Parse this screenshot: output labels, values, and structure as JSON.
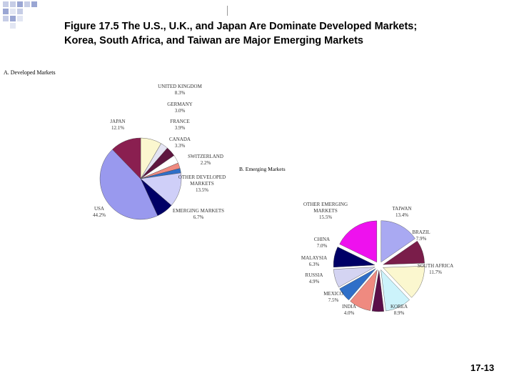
{
  "title_line1": "Figure 17.5 The U.S., U.K., and Japan Are Dominate Developed Markets;",
  "title_line2": "Korea, South Africa, and Taiwan are Major Emerging Markets",
  "slide_number": "17-13",
  "chart_data": [
    {
      "type": "pie",
      "title": "A. Developed Markets",
      "slices": [
        {
          "label": "UNITED KINGDOM",
          "value_text": "8.3%",
          "value": 8.3,
          "color": "#fbf7cf"
        },
        {
          "label": "GERMANY",
          "value_text": "3.0%",
          "value": 3.0,
          "color": "#e4e4f3"
        },
        {
          "label": "FRANCE",
          "value_text": "3.9%",
          "value": 3.9,
          "color": "#5e1640"
        },
        {
          "label": "CANADA",
          "value_text": "3.3%",
          "value": 3.3,
          "color": "#ffffff"
        },
        {
          "label": "SWITZERLAND",
          "value_text": "2.2%",
          "value": 2.2,
          "color": "#ef8a80"
        },
        {
          "label": "OTHER DEVELOPED MARKETS",
          "value_text": "13.5%",
          "value": 13.5,
          "color": "#cfcff8",
          "pre_color": "#2f6fc8",
          "pre_value": 1.8
        },
        {
          "label": "EMERGING MARKETS",
          "value_text": "6.7%",
          "value": 6.7,
          "color": "#000066"
        },
        {
          "label": "USA",
          "value_text": "44.2%",
          "value": 44.2,
          "color": "#9999ee"
        },
        {
          "label": "JAPAN",
          "value_text": "12.1%",
          "value": 12.1,
          "color": "#8a1f50"
        }
      ]
    },
    {
      "type": "pie",
      "title": "B. Emerging Markets",
      "slices": [
        {
          "label": "TAIWAN",
          "value_text": "13.4%",
          "value": 13.4,
          "color": "#a9a9f2"
        },
        {
          "label": "BRAZIL",
          "value_text": "7.9%",
          "value": 7.9,
          "color": "#7a1d4a"
        },
        {
          "label": "SOUTH AFRICA",
          "value_text": "11.7%",
          "value": 11.7,
          "color": "#fbf7cf"
        },
        {
          "label": "KOREA",
          "value_text": "8.9%",
          "value": 8.9,
          "color": "#ccf3fb"
        },
        {
          "label": "INDIA",
          "value_text": "4.0%",
          "value": 4.0,
          "color": "#5a0f49"
        },
        {
          "label": "MEXICO",
          "value_text": "7.5%",
          "value": 7.5,
          "color": "#ef8a80"
        },
        {
          "label": "RUSSIA",
          "value_text": "4.9%",
          "value": 4.9,
          "color": "#2f6fc8"
        },
        {
          "label": "MALAYSIA",
          "value_text": "6.3%",
          "value": 6.3,
          "color": "#d4d4f2"
        },
        {
          "label": "CHINA",
          "value_text": "7.0%",
          "value": 7.0,
          "color": "#000066"
        },
        {
          "label": "OTHER EMERGING MARKETS",
          "value_text": "15.5%",
          "value": 15.5,
          "color": "#ee11ee"
        }
      ]
    }
  ]
}
